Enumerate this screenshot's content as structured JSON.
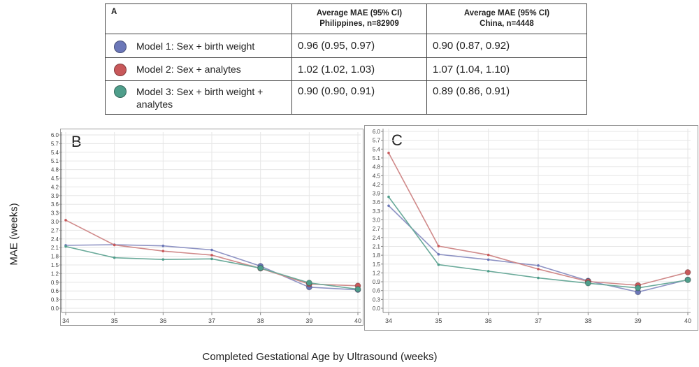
{
  "table": {
    "panel_label": "A",
    "col1_header": [
      "Average MAE (95% CI)",
      "Philippines, n=82909"
    ],
    "col2_header": [
      "Average MAE (95% CI)",
      "China, n=4448"
    ],
    "rows": [
      {
        "model": "Model 1: Sex + birth weight",
        "color": "#6b77b8",
        "philippines": "0.96 (0.95, 0.97)",
        "china": "0.90 (0.87, 0.92)"
      },
      {
        "model": "Model 2: Sex + analytes",
        "color": "#c8585a",
        "philippines": "1.02 (1.02, 1.03)",
        "china": "1.07 (1.04, 1.10)"
      },
      {
        "model": "Model 3: Sex + birth weight + analytes",
        "color": "#4f9e8b",
        "philippines": "0.90 (0.90, 0.91)",
        "china": "0.89 (0.86, 0.91)"
      }
    ]
  },
  "chart_data": [
    {
      "type": "line",
      "panel_label": "B",
      "x": [
        34,
        35,
        36,
        37,
        38,
        39,
        40
      ],
      "ylim": [
        0,
        6.0
      ],
      "yticks": [
        0.0,
        0.3,
        0.6,
        0.9,
        1.2,
        1.5,
        1.8,
        2.1,
        2.4,
        2.7,
        3.0,
        3.3,
        3.6,
        3.9,
        4.2,
        4.5,
        4.8,
        5.1,
        5.4,
        5.7,
        6.0
      ],
      "grid": true,
      "series": [
        {
          "color": "#8e93c4",
          "marker": "#6b77b8",
          "values": [
            2.18,
            2.2,
            2.16,
            2.02,
            1.46,
            0.73,
            0.64
          ]
        },
        {
          "color": "#d08a8a",
          "marker": "#c8585a",
          "values": [
            3.05,
            2.19,
            1.98,
            1.84,
            1.38,
            0.84,
            0.78
          ]
        },
        {
          "color": "#6aaa9a",
          "marker": "#4f9e8b",
          "values": [
            2.14,
            1.75,
            1.69,
            1.71,
            1.39,
            0.88,
            0.66
          ]
        }
      ]
    },
    {
      "type": "line",
      "panel_label": "C",
      "x": [
        34,
        35,
        36,
        37,
        38,
        39,
        40
      ],
      "ylim": [
        0,
        6.0
      ],
      "yticks": [
        0.0,
        0.3,
        0.6,
        0.9,
        1.2,
        1.5,
        1.8,
        2.1,
        2.4,
        2.7,
        3.0,
        3.3,
        3.6,
        3.9,
        4.2,
        4.5,
        4.8,
        5.1,
        5.4,
        5.7,
        6.0
      ],
      "grid": true,
      "series": [
        {
          "color": "#8e93c4",
          "marker": "#6b77b8",
          "values": [
            3.48,
            1.83,
            1.65,
            1.45,
            0.93,
            0.55,
            0.97
          ]
        },
        {
          "color": "#d08a8a",
          "marker": "#c8585a",
          "values": [
            5.27,
            2.11,
            1.81,
            1.33,
            0.91,
            0.78,
            1.22
          ]
        },
        {
          "color": "#6aaa9a",
          "marker": "#4f9e8b",
          "values": [
            3.78,
            1.48,
            1.26,
            1.03,
            0.85,
            0.69,
            0.96
          ]
        }
      ]
    }
  ],
  "ylabel": "MAE (weeks)",
  "xlabel": "Completed Gestational Age by Ultrasound (weeks)"
}
